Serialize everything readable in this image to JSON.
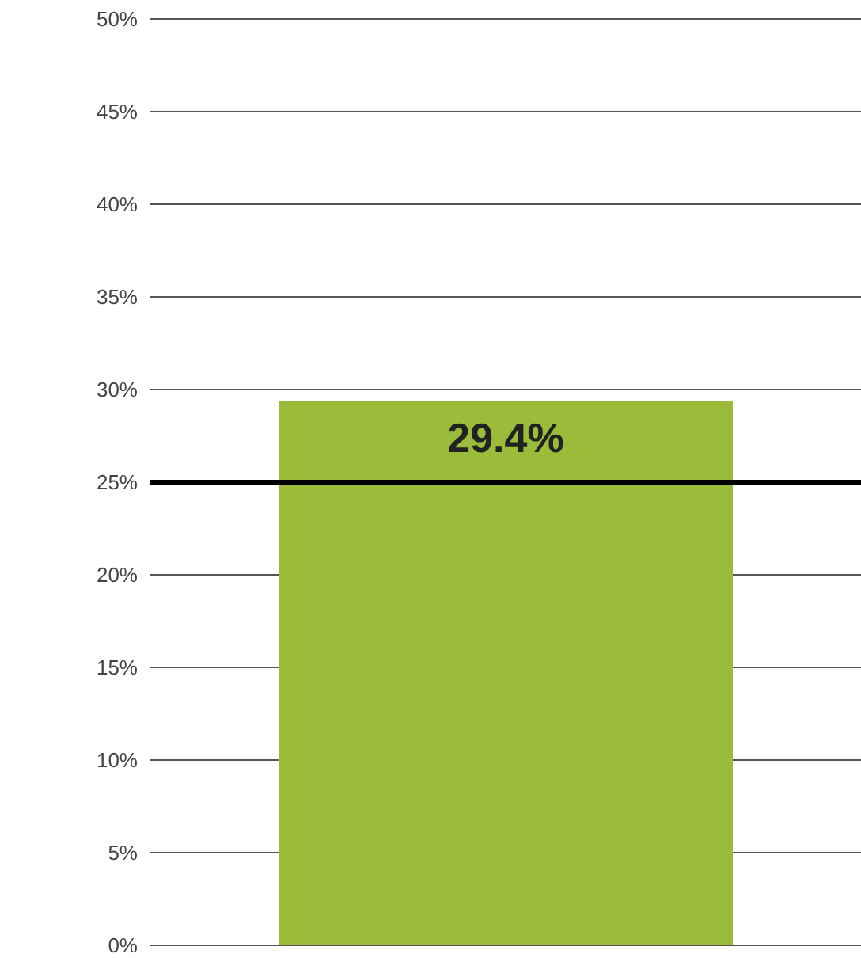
{
  "chart_data": {
    "type": "bar",
    "categories": [
      null
    ],
    "values": [
      29.4
    ],
    "color": "#9bbb3a",
    "value_labels": [
      "29.4%"
    ],
    "ylim": [
      0,
      50
    ],
    "yticks": [
      {
        "value": 0,
        "label": "0%"
      },
      {
        "value": 5,
        "label": "5%"
      },
      {
        "value": 10,
        "label": "10%"
      },
      {
        "value": 15,
        "label": "15%"
      },
      {
        "value": 20,
        "label": "20%"
      },
      {
        "value": 25,
        "label": "25%"
      },
      {
        "value": 30,
        "label": "30%"
      },
      {
        "value": 35,
        "label": "35%"
      },
      {
        "value": 40,
        "label": "40%"
      },
      {
        "value": 45,
        "label": "45%"
      },
      {
        "value": 50,
        "label": "50%"
      }
    ],
    "ref_lines": [
      {
        "axis": "y",
        "value": 25,
        "color": "#000000"
      }
    ],
    "grid": "y",
    "legend": false
  }
}
